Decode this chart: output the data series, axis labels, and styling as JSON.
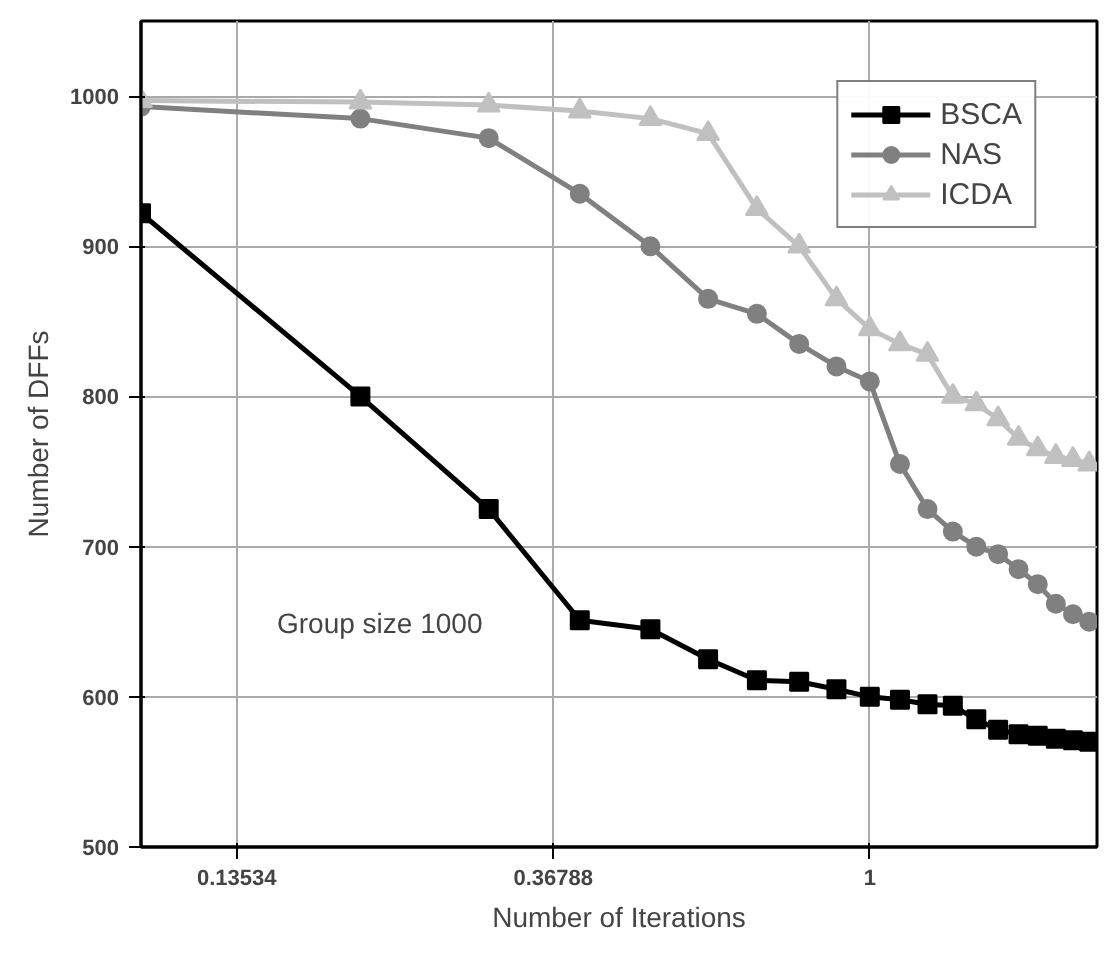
{
  "chart_data": {
    "type": "line",
    "xlabel": "Number of Iterations",
    "ylabel": "Number of DFFs",
    "log": "x",
    "x": [
      0.1,
      0.2,
      0.3,
      0.4,
      0.5,
      0.6,
      0.7,
      0.8,
      0.9,
      1.0,
      1.1,
      1.2,
      1.3,
      1.4,
      1.5,
      1.6,
      1.7,
      1.8,
      1.9,
      2.0
    ],
    "series": [
      {
        "name": "BSCA",
        "color": "#000000",
        "marker": "square",
        "values": [
          922,
          800,
          725,
          651,
          645,
          625,
          611,
          610,
          605,
          600,
          598,
          595,
          594,
          585,
          578,
          575,
          574,
          572,
          571,
          570
        ]
      },
      {
        "name": "NAS",
        "color": "#808080",
        "marker": "circle",
        "values": [
          993,
          985,
          972,
          935,
          900,
          865,
          855,
          835,
          820,
          810,
          755,
          725,
          710,
          700,
          695,
          685,
          675,
          662,
          655,
          650
        ]
      },
      {
        "name": "ICDA",
        "color": "#c0c0c0",
        "marker": "triangle",
        "values": [
          997,
          996,
          994,
          990,
          985,
          975,
          925,
          900,
          865,
          845,
          835,
          828,
          800,
          795,
          785,
          772,
          765,
          760,
          758,
          755
        ]
      }
    ],
    "xlim": [
      0.1,
      2.05
    ],
    "ylim": [
      500,
      1050
    ],
    "xticks": [
      0.13534,
      0.36788,
      1
    ],
    "yticks": [
      500,
      600,
      700,
      800,
      900,
      1000
    ],
    "grid": true,
    "legend": "top right",
    "annotations": [
      "Group size 1000"
    ]
  }
}
